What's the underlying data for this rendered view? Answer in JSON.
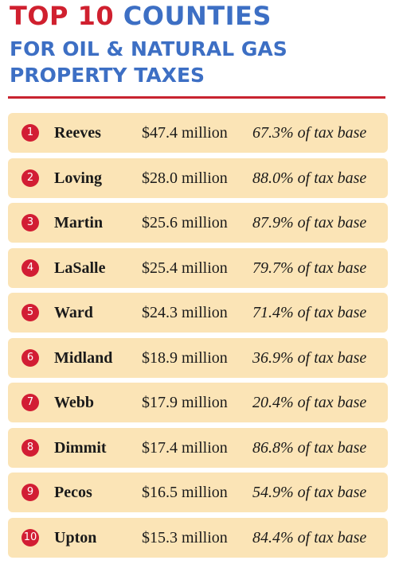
{
  "header": {
    "title_red": "TOP 10",
    "title_blue": "COUNTIES",
    "subtitle": [
      "FOR OIL & NATURAL GAS",
      "PROPERTY TAXES"
    ]
  },
  "table": {
    "rows": [
      [
        "1",
        "Reeves",
        "$47.4 million",
        "67.3% of tax base"
      ],
      [
        "2",
        "Loving",
        "$28.0 million",
        "88.0% of tax base"
      ],
      [
        "3",
        "Martin",
        "$25.6 million",
        "87.9% of tax base"
      ],
      [
        "4",
        "LaSalle",
        "$25.4 million",
        "79.7% of tax base"
      ],
      [
        "5",
        "Ward",
        "$24.3 million",
        "71.4% of tax base"
      ],
      [
        "6",
        "Midland",
        "$18.9 million",
        "36.9% of tax base"
      ],
      [
        "7",
        "Webb",
        "$17.9 million",
        "20.4% of tax base"
      ],
      [
        "8",
        "Dimmit",
        "$17.4 million",
        "86.8% of tax base"
      ],
      [
        "9",
        "Pecos",
        "$16.5 million",
        "54.9% of tax base"
      ],
      [
        "10",
        "Upton",
        "$15.3 million",
        "84.4% of tax base"
      ]
    ]
  }
}
